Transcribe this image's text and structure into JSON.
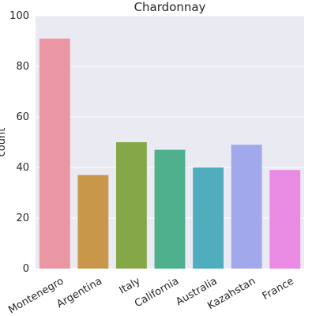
{
  "chart_data": {
    "type": "bar",
    "title": "Chardonnay",
    "xlabel": "",
    "ylabel": "count",
    "categories": [
      "Montenegro",
      "Argentina",
      "Italy",
      "California",
      "Australia",
      "Kazahstan",
      "France"
    ],
    "values": [
      91,
      37,
      50,
      47,
      40,
      49,
      39
    ],
    "colors": [
      "#ea96a3",
      "#c8974a",
      "#86a748",
      "#4eb08c",
      "#50adbe",
      "#a1a8ec",
      "#e98be2"
    ],
    "ylim": [
      0,
      100
    ],
    "yticks": [
      0,
      20,
      40,
      60,
      80,
      100
    ],
    "grid": true,
    "background": "#eaeaf2"
  }
}
